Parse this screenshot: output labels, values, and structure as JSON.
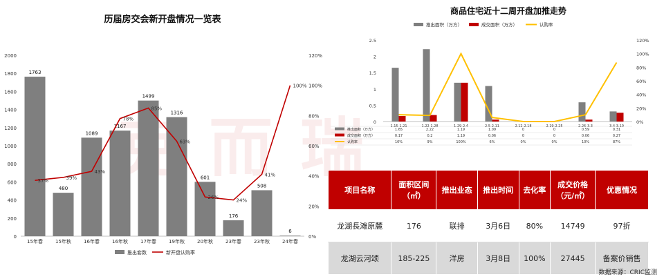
{
  "watermark": "克而瑞",
  "chart_data": [
    {
      "type": "bar",
      "title": "历届房交会新开盘情况一览表",
      "categories": [
        "15年春",
        "15年秋",
        "16年春",
        "16年秋",
        "17年春",
        "19年秋",
        "20年秋",
        "23年春",
        "23年秋",
        "24年春"
      ],
      "series": [
        {
          "name": "推出套数",
          "type": "bar",
          "axis": "left",
          "values": [
            1763,
            480,
            1089,
            1167,
            1499,
            1316,
            601,
            176,
            508,
            6
          ],
          "color": "#7f7f7f"
        },
        {
          "name": "新开盘认购率",
          "type": "line",
          "axis": "right",
          "values": [
            37,
            39,
            43,
            78,
            85,
            63,
            26,
            24,
            41,
            100
          ],
          "color": "#c00000"
        }
      ],
      "ylim": [
        0,
        2000
      ],
      "yticks": [
        0,
        200,
        400,
        600,
        800,
        1000,
        1200,
        1400,
        1600,
        1800,
        2000
      ],
      "y2lim": [
        0,
        120
      ],
      "y2ticks": [
        "0%",
        "20%",
        "40%",
        "60%",
        "80%",
        "100%",
        "120%"
      ]
    },
    {
      "type": "bar",
      "title": "商品住宅近十二周开盘加推走势",
      "categories": [
        "1.15-1.21",
        "1.22-1.28",
        "1.29-2.4",
        "2.5-2.11",
        "2.12-2.18",
        "2.19-2.25",
        "2.26-3.3",
        "3.4-3.10"
      ],
      "series": [
        {
          "name": "推出面积（万方）",
          "type": "bar",
          "axis": "left",
          "values": [
            1.65,
            2.22,
            1.19,
            1.09,
            0,
            0,
            0.59,
            0.31
          ],
          "labels": [
            "1.65",
            "2.22",
            "1.19",
            "1.09",
            "0",
            "0",
            "0.59",
            "0.31"
          ],
          "color": "#7f7f7f"
        },
        {
          "name": "成交面积（万方）",
          "type": "bar",
          "axis": "left",
          "values": [
            0.17,
            0.2,
            1.19,
            0.06,
            0,
            0,
            0.06,
            0.27
          ],
          "labels": [
            "0.17",
            "0.2",
            "1.19",
            "0.06",
            "0",
            "0",
            "0.06",
            "0.27"
          ],
          "color": "#c00000"
        },
        {
          "name": "认购率",
          "type": "line",
          "axis": "right",
          "values": [
            10,
            9,
            100,
            6,
            0,
            0,
            10,
            87
          ],
          "labels": [
            "10%",
            "9%",
            "100%",
            "6%",
            "0%",
            "0%",
            "10%",
            "87%"
          ],
          "color": "#ffc000"
        }
      ],
      "ylim": [
        0,
        2.5
      ],
      "yticks": [
        "0",
        "0.5",
        "1",
        "1.5",
        "2",
        "2.5"
      ],
      "y2lim": [
        0,
        120
      ],
      "y2ticks": [
        "0%",
        "20%",
        "40%",
        "60%",
        "80%",
        "100%",
        "120%"
      ]
    }
  ],
  "table": {
    "headers": [
      "项目名称",
      "面积区间\n（㎡）",
      "推出业态",
      "推出时间",
      "去化率",
      "成交价格\n（元/㎡）",
      "优惠情况"
    ],
    "rows": [
      [
        "龙湖長滩原麓",
        "176",
        "联排",
        "3月6日",
        "80%",
        "14749",
        "97折"
      ],
      [
        "龙湖云河颂",
        "185-225",
        "洋房",
        "3月8日",
        "100%",
        "27445",
        "备案价销售"
      ]
    ]
  },
  "source": "数据来源：CRIC监测"
}
